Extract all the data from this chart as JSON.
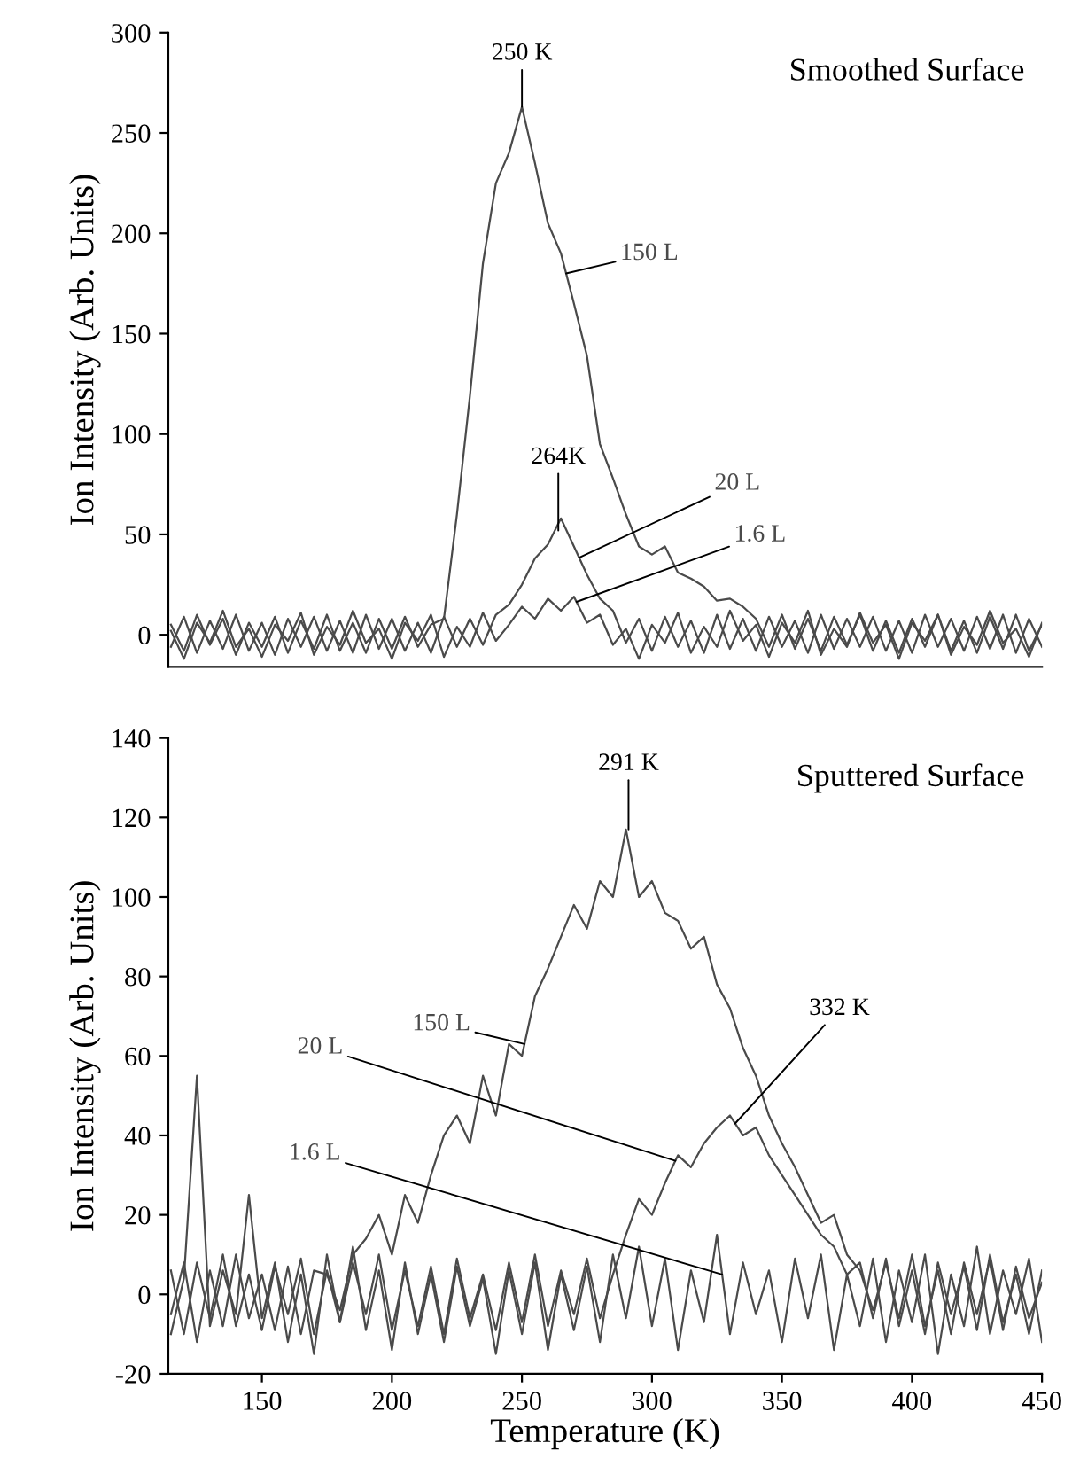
{
  "chart_data": [
    {
      "type": "line",
      "title": "Smoothed Surface",
      "ylabel": "Ion Intensity (Arb. Units)",
      "xlim": [
        114,
        450
      ],
      "ylim": [
        -16,
        300
      ],
      "yticks": [
        0,
        50,
        100,
        150,
        200,
        250,
        300
      ],
      "tick_labels": "y",
      "grid": false,
      "legend": false,
      "marker": "none",
      "line_style": "solid",
      "x": [
        115,
        120,
        125,
        130,
        135,
        140,
        145,
        150,
        155,
        160,
        165,
        170,
        175,
        180,
        185,
        190,
        195,
        200,
        205,
        210,
        215,
        220,
        225,
        230,
        235,
        240,
        245,
        250,
        255,
        260,
        265,
        270,
        275,
        280,
        285,
        290,
        295,
        300,
        305,
        310,
        315,
        320,
        325,
        330,
        335,
        340,
        345,
        350,
        355,
        360,
        365,
        370,
        375,
        380,
        385,
        390,
        395,
        400,
        405,
        410,
        415,
        420,
        425,
        430,
        435,
        440,
        445,
        450
      ],
      "series": [
        {
          "name": "150 L",
          "color": "#4a4a4a",
          "values": [
            5,
            -8,
            10,
            -5,
            8,
            -10,
            6,
            -6,
            9,
            -9,
            7,
            -7,
            10,
            -8,
            6,
            -9,
            8,
            -7,
            9,
            -6,
            5,
            8,
            60,
            119,
            185,
            225,
            240,
            263,
            235,
            205,
            190,
            165,
            139,
            95,
            78,
            60,
            44,
            40,
            44,
            31,
            28,
            24,
            17,
            18,
            14,
            8,
            -6,
            10,
            -7,
            8,
            -8,
            9,
            -5,
            10,
            -8,
            7,
            -9,
            8,
            -6,
            10,
            -8,
            7,
            -9,
            9,
            -7,
            10,
            -8,
            5
          ]
        },
        {
          "name": "20 L",
          "color": "#4a4a4a",
          "values": [
            -6,
            9,
            -9,
            7,
            -7,
            10,
            -8,
            6,
            -10,
            8,
            -6,
            9,
            -8,
            7,
            -9,
            10,
            -7,
            8,
            -8,
            6,
            -9,
            9,
            -6,
            8,
            -5,
            10,
            15,
            25,
            38,
            45,
            58,
            44,
            30,
            18,
            12,
            -4,
            8,
            -8,
            9,
            -6,
            7,
            -9,
            10,
            -7,
            8,
            -8,
            9,
            -6,
            7,
            -9,
            10,
            -7,
            8,
            -6,
            9,
            -8,
            7,
            -9,
            10,
            -6,
            8,
            -8,
            9,
            -7,
            10,
            -9,
            8,
            -6
          ]
        },
        {
          "name": "1.6 L",
          "color": "#4a4a4a",
          "values": [
            2,
            -12,
            6,
            -4,
            12,
            -6,
            3,
            -11,
            5,
            -3,
            11,
            -10,
            4,
            -5,
            12,
            -4,
            3,
            -12,
            6,
            -3,
            10,
            -11,
            4,
            -6,
            11,
            -3,
            5,
            14,
            8,
            18,
            12,
            19,
            6,
            10,
            -5,
            3,
            -12,
            5,
            -4,
            11,
            -9,
            4,
            -6,
            12,
            -3,
            5,
            -11,
            6,
            -4,
            12,
            -10,
            3,
            -6,
            11,
            -4,
            5,
            -12,
            6,
            -3,
            10,
            -10,
            4,
            -5,
            12,
            -4,
            3,
            -11,
            6
          ]
        }
      ],
      "annotations": [
        {
          "text": "250 K",
          "x": 250,
          "y": 263
        },
        {
          "text": "264K",
          "x": 264,
          "y": 52
        }
      ]
    },
    {
      "type": "line",
      "title": "Sputtered Surface",
      "xlabel": "Temperature (K)",
      "ylabel": "Ion Intensity (Arb. Units)",
      "xlim": [
        114,
        450
      ],
      "ylim": [
        -20,
        140
      ],
      "xticks": [
        150,
        200,
        250,
        300,
        350,
        400,
        450
      ],
      "yticks": [
        -20,
        0,
        20,
        40,
        60,
        80,
        100,
        120,
        140
      ],
      "grid": false,
      "legend": false,
      "marker": "none",
      "line_style": "solid",
      "x": [
        115,
        120,
        125,
        130,
        135,
        140,
        145,
        150,
        155,
        160,
        165,
        170,
        175,
        180,
        185,
        190,
        195,
        200,
        205,
        210,
        215,
        220,
        225,
        230,
        235,
        240,
        245,
        250,
        255,
        260,
        265,
        270,
        275,
        280,
        285,
        290,
        295,
        300,
        305,
        310,
        315,
        320,
        325,
        330,
        335,
        340,
        345,
        350,
        355,
        360,
        365,
        370,
        375,
        380,
        385,
        390,
        395,
        400,
        405,
        410,
        415,
        420,
        425,
        430,
        435,
        440,
        445,
        450
      ],
      "series": [
        {
          "name": "150 L",
          "color": "#4a4a4a",
          "values": [
            -5,
            8,
            -12,
            6,
            -8,
            10,
            -6,
            5,
            -9,
            7,
            -10,
            6,
            5,
            -4,
            10,
            14,
            20,
            10,
            25,
            18,
            30,
            40,
            45,
            38,
            55,
            45,
            63,
            60,
            75,
            82,
            90,
            98,
            92,
            104,
            100,
            117,
            100,
            104,
            96,
            94,
            87,
            90,
            78,
            72,
            62,
            55,
            45,
            38,
            32,
            25,
            18,
            20,
            10,
            6,
            -4,
            8,
            -6,
            10,
            -8,
            6,
            -10,
            8,
            -5,
            9,
            -9,
            7,
            -6,
            3
          ]
        },
        {
          "name": "20 L",
          "color": "#4a4a4a",
          "values": [
            6,
            -10,
            8,
            -6,
            10,
            -8,
            5,
            -9,
            7,
            -5,
            9,
            -10,
            6,
            -7,
            8,
            -5,
            10,
            -9,
            6,
            -8,
            7,
            -10,
            9,
            -6,
            5,
            -9,
            8,
            -7,
            10,
            -8,
            6,
            -5,
            9,
            -6,
            5,
            15,
            24,
            20,
            28,
            35,
            32,
            38,
            42,
            45,
            40,
            42,
            35,
            30,
            25,
            20,
            15,
            12,
            5,
            8,
            -6,
            9,
            -8,
            6,
            -10,
            8,
            -5,
            7,
            -9,
            10,
            -7,
            5,
            -10,
            6
          ]
        },
        {
          "name": "1.6 L",
          "color": "#4a4a4a",
          "values": [
            -10,
            4,
            55,
            -8,
            6,
            -5,
            25,
            -6,
            8,
            -12,
            5,
            -15,
            10,
            -7,
            12,
            -9,
            6,
            -14,
            8,
            -10,
            5,
            -12,
            7,
            -8,
            4,
            -15,
            6,
            -10,
            8,
            -14,
            5,
            -9,
            7,
            -12,
            10,
            -6,
            12,
            -8,
            9,
            -14,
            6,
            -7,
            15,
            -10,
            8,
            -5,
            6,
            -12,
            9,
            -6,
            10,
            -14,
            5,
            -8,
            9,
            -12,
            6,
            -7,
            10,
            -15,
            5,
            -8,
            12,
            -10,
            6,
            -5,
            9,
            -12
          ]
        }
      ],
      "annotations": [
        {
          "text": "291 K",
          "x": 291,
          "y": 117
        },
        {
          "text": "332 K",
          "x": 332,
          "y": 43
        }
      ]
    }
  ]
}
